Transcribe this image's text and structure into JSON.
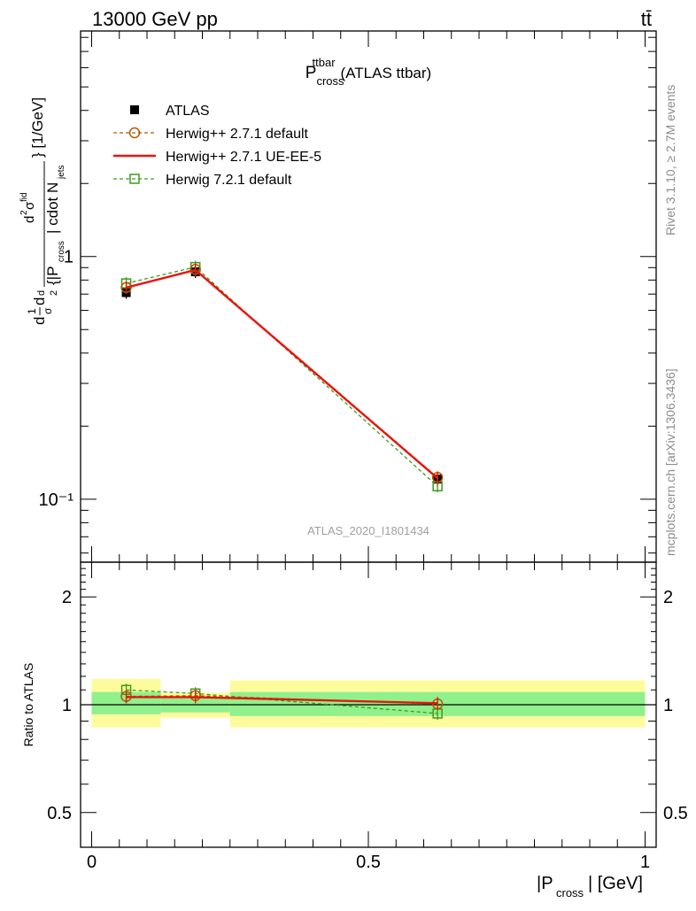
{
  "header": {
    "left": "13000 GeV pp",
    "right": "tt̄"
  },
  "title": {
    "main": "P",
    "sup": "ttbar",
    "sub": "cross",
    "suffix": "(ATLAS ttbar)"
  },
  "side_labels": {
    "rivet": "Rivet 3.1.10, ≥ 2.7M events",
    "mcplots": "mcplots.cern.ch [arXiv:1306.3436]"
  },
  "watermark": "ATLAS_2020_I1801434",
  "chart_data": [
    {
      "type": "line",
      "panel": "main",
      "title": "P^ttbar_cross (ATLAS ttbar)",
      "xlabel": "|P_cross| [GeV]",
      "ylabel": "d²σ/d²{|P_cross| cdot N_jets} [1/GeV], normalised (1/σ)",
      "log_y": true,
      "xlim": [
        -0.02,
        1.02
      ],
      "ylim": [
        0.055,
        8.5
      ],
      "y_tick_labels": [
        "10⁻¹",
        "1"
      ],
      "legend_position": "top-left",
      "series": [
        {
          "name": "ATLAS",
          "color": "#000000",
          "marker": "filled-square",
          "line": "none",
          "x": [
            0.0625,
            0.1875,
            0.625
          ],
          "y": [
            0.71,
            0.865,
            0.121
          ],
          "x_bins": [
            [
              0.0,
              0.125
            ],
            [
              0.125,
              0.25
            ],
            [
              0.25,
              1.0
            ]
          ]
        },
        {
          "name": "Herwig++ 2.7.1 default",
          "color": "#b35900",
          "marker": "open-circle",
          "line": "dashed",
          "x": [
            0.0625,
            0.1875,
            0.625
          ],
          "y": [
            0.745,
            0.885,
            0.123
          ]
        },
        {
          "name": "Herwig++ 2.7.1 UE-EE-5",
          "color": "#e8160f",
          "marker": "none",
          "line": "solid",
          "x": [
            0.0625,
            0.1875,
            0.625
          ],
          "y": [
            0.745,
            0.88,
            0.122
          ]
        },
        {
          "name": "Herwig 7.2.1 default",
          "color": "#3f9a1f",
          "marker": "open-square",
          "line": "dashed",
          "x": [
            0.0625,
            0.1875,
            0.625
          ],
          "y": [
            0.775,
            0.905,
            0.113
          ]
        }
      ]
    },
    {
      "type": "line",
      "panel": "ratio",
      "xlabel": "|P_cross| [GeV]",
      "ylabel": "Ratio to ATLAS",
      "log_y": true,
      "xlim": [
        -0.02,
        1.02
      ],
      "ylim": [
        0.4,
        2.5
      ],
      "y_ticks": [
        0.5,
        1,
        2
      ],
      "x_ticks": [
        0,
        0.5,
        1
      ],
      "x_tick_labels": [
        "0",
        "0.5",
        "1"
      ],
      "bands": [
        {
          "x0": 0.0,
          "x1": 0.125,
          "inner": [
            0.94,
            1.085
          ],
          "outer": [
            0.865,
            1.18
          ]
        },
        {
          "x0": 0.125,
          "x1": 0.25,
          "inner": [
            0.952,
            1.048
          ],
          "outer": [
            0.92,
            1.08
          ]
        },
        {
          "x0": 0.25,
          "x1": 1.0,
          "inner": [
            0.93,
            1.085
          ],
          "outer": [
            0.865,
            1.17
          ]
        }
      ],
      "band_colors": {
        "inner": "#90f08c",
        "outer": "#fdfc9d"
      },
      "series": [
        {
          "name": "Herwig++ 2.7.1 default",
          "color": "#b35900",
          "marker": "open-circle",
          "line": "dashed",
          "x": [
            0.0625,
            0.1875,
            0.625
          ],
          "y": [
            1.055,
            1.06,
            1.005
          ]
        },
        {
          "name": "Herwig++ 2.7.1 UE-EE-5",
          "color": "#e8160f",
          "marker": "none",
          "line": "solid",
          "x": [
            0.0625,
            0.1875,
            0.625
          ],
          "y": [
            1.05,
            1.05,
            1.01
          ]
        },
        {
          "name": "Herwig 7.2.1 default",
          "color": "#3f9a1f",
          "marker": "open-square",
          "line": "dashed",
          "x": [
            0.0625,
            0.1875,
            0.625
          ],
          "y": [
            1.1,
            1.075,
            0.945
          ]
        }
      ]
    }
  ]
}
